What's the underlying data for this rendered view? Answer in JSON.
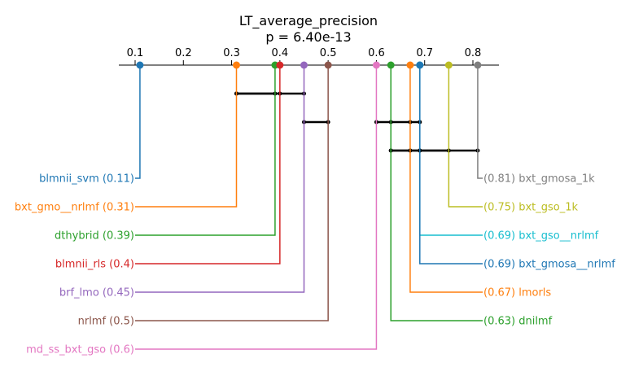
{
  "chart_data": {
    "type": "critical-difference",
    "title": "LT_average_precision",
    "subtitle": "p = 6.40e-13",
    "axis": {
      "range": [
        0.05,
        0.86
      ],
      "ticks": [
        0.1,
        0.2,
        0.3,
        0.4,
        0.5,
        0.6,
        0.7,
        0.8
      ],
      "tick_labels": [
        "0.1",
        "0.2",
        "0.3",
        "0.4",
        "0.5",
        "0.6",
        "0.7",
        "0.8"
      ]
    },
    "methods": [
      {
        "name": "blmnii_svm",
        "value": 0.11,
        "label": "blmnii_svm (0.11)",
        "color": "#1f77b4",
        "side": "left"
      },
      {
        "name": "bxt_gmo__nrlmf",
        "value": 0.31,
        "label": "bxt_gmo__nrlmf (0.31)",
        "color": "#ff7f0e",
        "side": "left"
      },
      {
        "name": "dthybrid",
        "value": 0.39,
        "label": "dthybrid (0.39)",
        "color": "#2ca02c",
        "side": "left"
      },
      {
        "name": "blmnii_rls",
        "value": 0.4,
        "label": "blmnii_rls (0.4)",
        "color": "#d62728",
        "side": "left"
      },
      {
        "name": "brf_lmo",
        "value": 0.45,
        "label": "brf_lmo (0.45)",
        "color": "#9467bd",
        "side": "left"
      },
      {
        "name": "nrlmf",
        "value": 0.5,
        "label": "nrlmf (0.5)",
        "color": "#8c564b",
        "side": "left"
      },
      {
        "name": "md_ss_bxt_gso",
        "value": 0.6,
        "label": "md_ss_bxt_gso (0.6)",
        "color": "#e377c2",
        "side": "left"
      },
      {
        "name": "bxt_gmosa_1k",
        "value": 0.81,
        "label": "(0.81) bxt_gmosa_1k",
        "color": "#7f7f7f",
        "side": "right"
      },
      {
        "name": "bxt_gso_1k",
        "value": 0.75,
        "label": "(0.75) bxt_gso_1k",
        "color": "#bcbd22",
        "side": "right"
      },
      {
        "name": "bxt_gso__nrlmf",
        "value": 0.69,
        "label": "(0.69) bxt_gso__nrlmf",
        "color": "#17becf",
        "side": "right"
      },
      {
        "name": "bxt_gmosa__nrlmf",
        "value": 0.69,
        "label": "(0.69) bxt_gmosa__nrlmf",
        "color": "#1f77b4",
        "side": "right"
      },
      {
        "name": "lmorls",
        "value": 0.67,
        "label": "(0.67) lmorls",
        "color": "#ff7f0e",
        "side": "right"
      },
      {
        "name": "dnilmf",
        "value": 0.63,
        "label": "(0.63) dnilmf",
        "color": "#2ca02c",
        "side": "right"
      }
    ],
    "cliques": [
      {
        "members": [
          "bxt_gmo__nrlmf",
          "dthybrid"
        ]
      },
      {
        "members": [
          "brf_lmo",
          "nrlmf"
        ]
      },
      {
        "members": [
          "dnilmf",
          "lmorls",
          "bxt_gmosa__nrlmf",
          "bxt_gso_1k"
        ]
      },
      {
        "members": [
          "bxt_gmo__nrlmf",
          "blmnii_rls",
          "brf_lmo"
        ]
      },
      {
        "members": [
          "md_ss_bxt_gso",
          "dnilmf",
          "lmorls",
          "bxt_gmosa__nrlmf"
        ]
      },
      {
        "members": [
          "dnilmf",
          "lmorls",
          "bxt_gso__nrlmf",
          "bxt_gmosa_1k"
        ]
      }
    ]
  }
}
